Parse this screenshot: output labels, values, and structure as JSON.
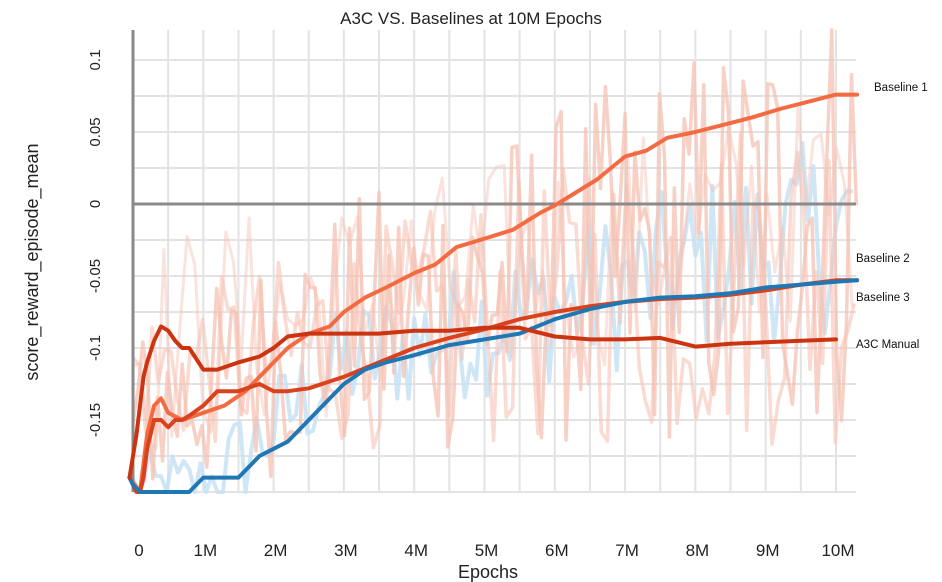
{
  "chart_data": {
    "type": "line",
    "title": "A3C VS. Baselines at 10M Epochs",
    "xlabel": "Epochs",
    "ylabel": "score_reward_episode_mean",
    "xlim": [
      -0.1,
      10.3
    ],
    "ylim": [
      -0.2,
      0.12
    ],
    "xticks": [
      0,
      1,
      2,
      3,
      4,
      5,
      6,
      7,
      8,
      9,
      10
    ],
    "xtick_labels": [
      "0",
      "1M",
      "2M",
      "3M",
      "4M",
      "5M",
      "6M",
      "7M",
      "8M",
      "9M",
      "10M"
    ],
    "yticks": [
      -0.15,
      -0.1,
      -0.05,
      0,
      0.05,
      0.1
    ],
    "ytick_labels": [
      "-0.15",
      "-0.1",
      "-0.05",
      "0",
      "0.05",
      "0.1"
    ],
    "grid": true,
    "zero_line": true,
    "legend": "labels at line ends, right of plot",
    "colors": {
      "Baseline 1": "#f26b43",
      "Baseline 2": "#d9421c",
      "Baseline 3": "#1f77b4",
      "A3C Manual": "#cc3311",
      "raw_red": "#f6c1b3",
      "raw_blue": "#c6e2f3"
    },
    "series": [
      {
        "name": "Baseline 1",
        "x": [
          -0.05,
          0.1,
          0.2,
          0.3,
          0.4,
          0.5,
          0.7,
          1.0,
          1.3,
          1.6,
          1.8,
          2.0,
          2.2,
          2.5,
          2.8,
          3.0,
          3.3,
          3.6,
          4.0,
          4.3,
          4.6,
          5.0,
          5.4,
          5.8,
          6.0,
          6.3,
          6.6,
          7.0,
          7.3,
          7.6,
          8.0,
          8.4,
          8.8,
          9.2,
          9.6,
          10.0,
          10.3
        ],
        "values": [
          -0.19,
          -0.2,
          -0.16,
          -0.14,
          -0.135,
          -0.145,
          -0.15,
          -0.145,
          -0.14,
          -0.13,
          -0.12,
          -0.11,
          -0.1,
          -0.09,
          -0.085,
          -0.075,
          -0.065,
          -0.058,
          -0.048,
          -0.042,
          -0.03,
          -0.024,
          -0.018,
          -0.006,
          -0.001,
          0.008,
          0.017,
          0.033,
          0.037,
          0.046,
          0.05,
          0.055,
          0.06,
          0.066,
          0.071,
          0.076,
          0.076
        ]
      },
      {
        "name": "Baseline 2",
        "x": [
          -0.05,
          0.05,
          0.1,
          0.15,
          0.2,
          0.3,
          0.4,
          0.5,
          0.6,
          0.7,
          0.8,
          1.0,
          1.2,
          1.5,
          1.8,
          2.0,
          2.2,
          2.5,
          3.0,
          3.5,
          4.0,
          4.5,
          5.0,
          5.5,
          6.0,
          6.5,
          7.0,
          7.5,
          8.0,
          8.5,
          9.0,
          9.5,
          10.0,
          10.3
        ],
        "values": [
          -0.19,
          -0.2,
          -0.2,
          -0.19,
          -0.17,
          -0.15,
          -0.15,
          -0.155,
          -0.15,
          -0.15,
          -0.147,
          -0.14,
          -0.13,
          -0.13,
          -0.125,
          -0.13,
          -0.13,
          -0.128,
          -0.12,
          -0.11,
          -0.1,
          -0.093,
          -0.087,
          -0.08,
          -0.075,
          -0.071,
          -0.068,
          -0.066,
          -0.065,
          -0.063,
          -0.06,
          -0.056,
          -0.053,
          -0.053
        ]
      },
      {
        "name": "Baseline 3",
        "x": [
          -0.05,
          0.0,
          0.1,
          0.2,
          0.3,
          0.5,
          0.8,
          1.0,
          1.2,
          1.5,
          1.8,
          2.0,
          2.2,
          2.5,
          2.8,
          3.0,
          3.3,
          3.6,
          4.0,
          4.5,
          5.0,
          5.5,
          6.0,
          6.5,
          7.0,
          7.5,
          8.0,
          8.5,
          9.0,
          9.5,
          10.0,
          10.3
        ],
        "values": [
          -0.19,
          -0.195,
          -0.2,
          -0.21,
          -0.22,
          -0.22,
          -0.21,
          -0.19,
          -0.19,
          -0.19,
          -0.175,
          -0.17,
          -0.165,
          -0.15,
          -0.135,
          -0.125,
          -0.115,
          -0.11,
          -0.105,
          -0.098,
          -0.094,
          -0.09,
          -0.08,
          -0.073,
          -0.068,
          -0.065,
          -0.064,
          -0.062,
          -0.058,
          -0.056,
          -0.054,
          -0.053
        ]
      },
      {
        "name": "A3C Manual",
        "x": [
          -0.05,
          0.05,
          0.1,
          0.15,
          0.2,
          0.3,
          0.4,
          0.5,
          0.6,
          0.7,
          0.8,
          1.0,
          1.2,
          1.5,
          1.8,
          2.0,
          2.2,
          2.5,
          3.0,
          3.5,
          4.0,
          4.5,
          5.0,
          5.5,
          6.0,
          6.5,
          7.0,
          7.5,
          8.0,
          8.5,
          9.0,
          9.5,
          10.0
        ],
        "values": [
          -0.19,
          -0.16,
          -0.14,
          -0.12,
          -0.11,
          -0.095,
          -0.085,
          -0.088,
          -0.095,
          -0.1,
          -0.1,
          -0.115,
          -0.115,
          -0.11,
          -0.106,
          -0.1,
          -0.092,
          -0.09,
          -0.09,
          -0.09,
          -0.088,
          -0.088,
          -0.086,
          -0.086,
          -0.092,
          -0.094,
          -0.094,
          -0.093,
          -0.099,
          -0.097,
          -0.096,
          -0.095,
          -0.094
        ]
      }
    ]
  }
}
